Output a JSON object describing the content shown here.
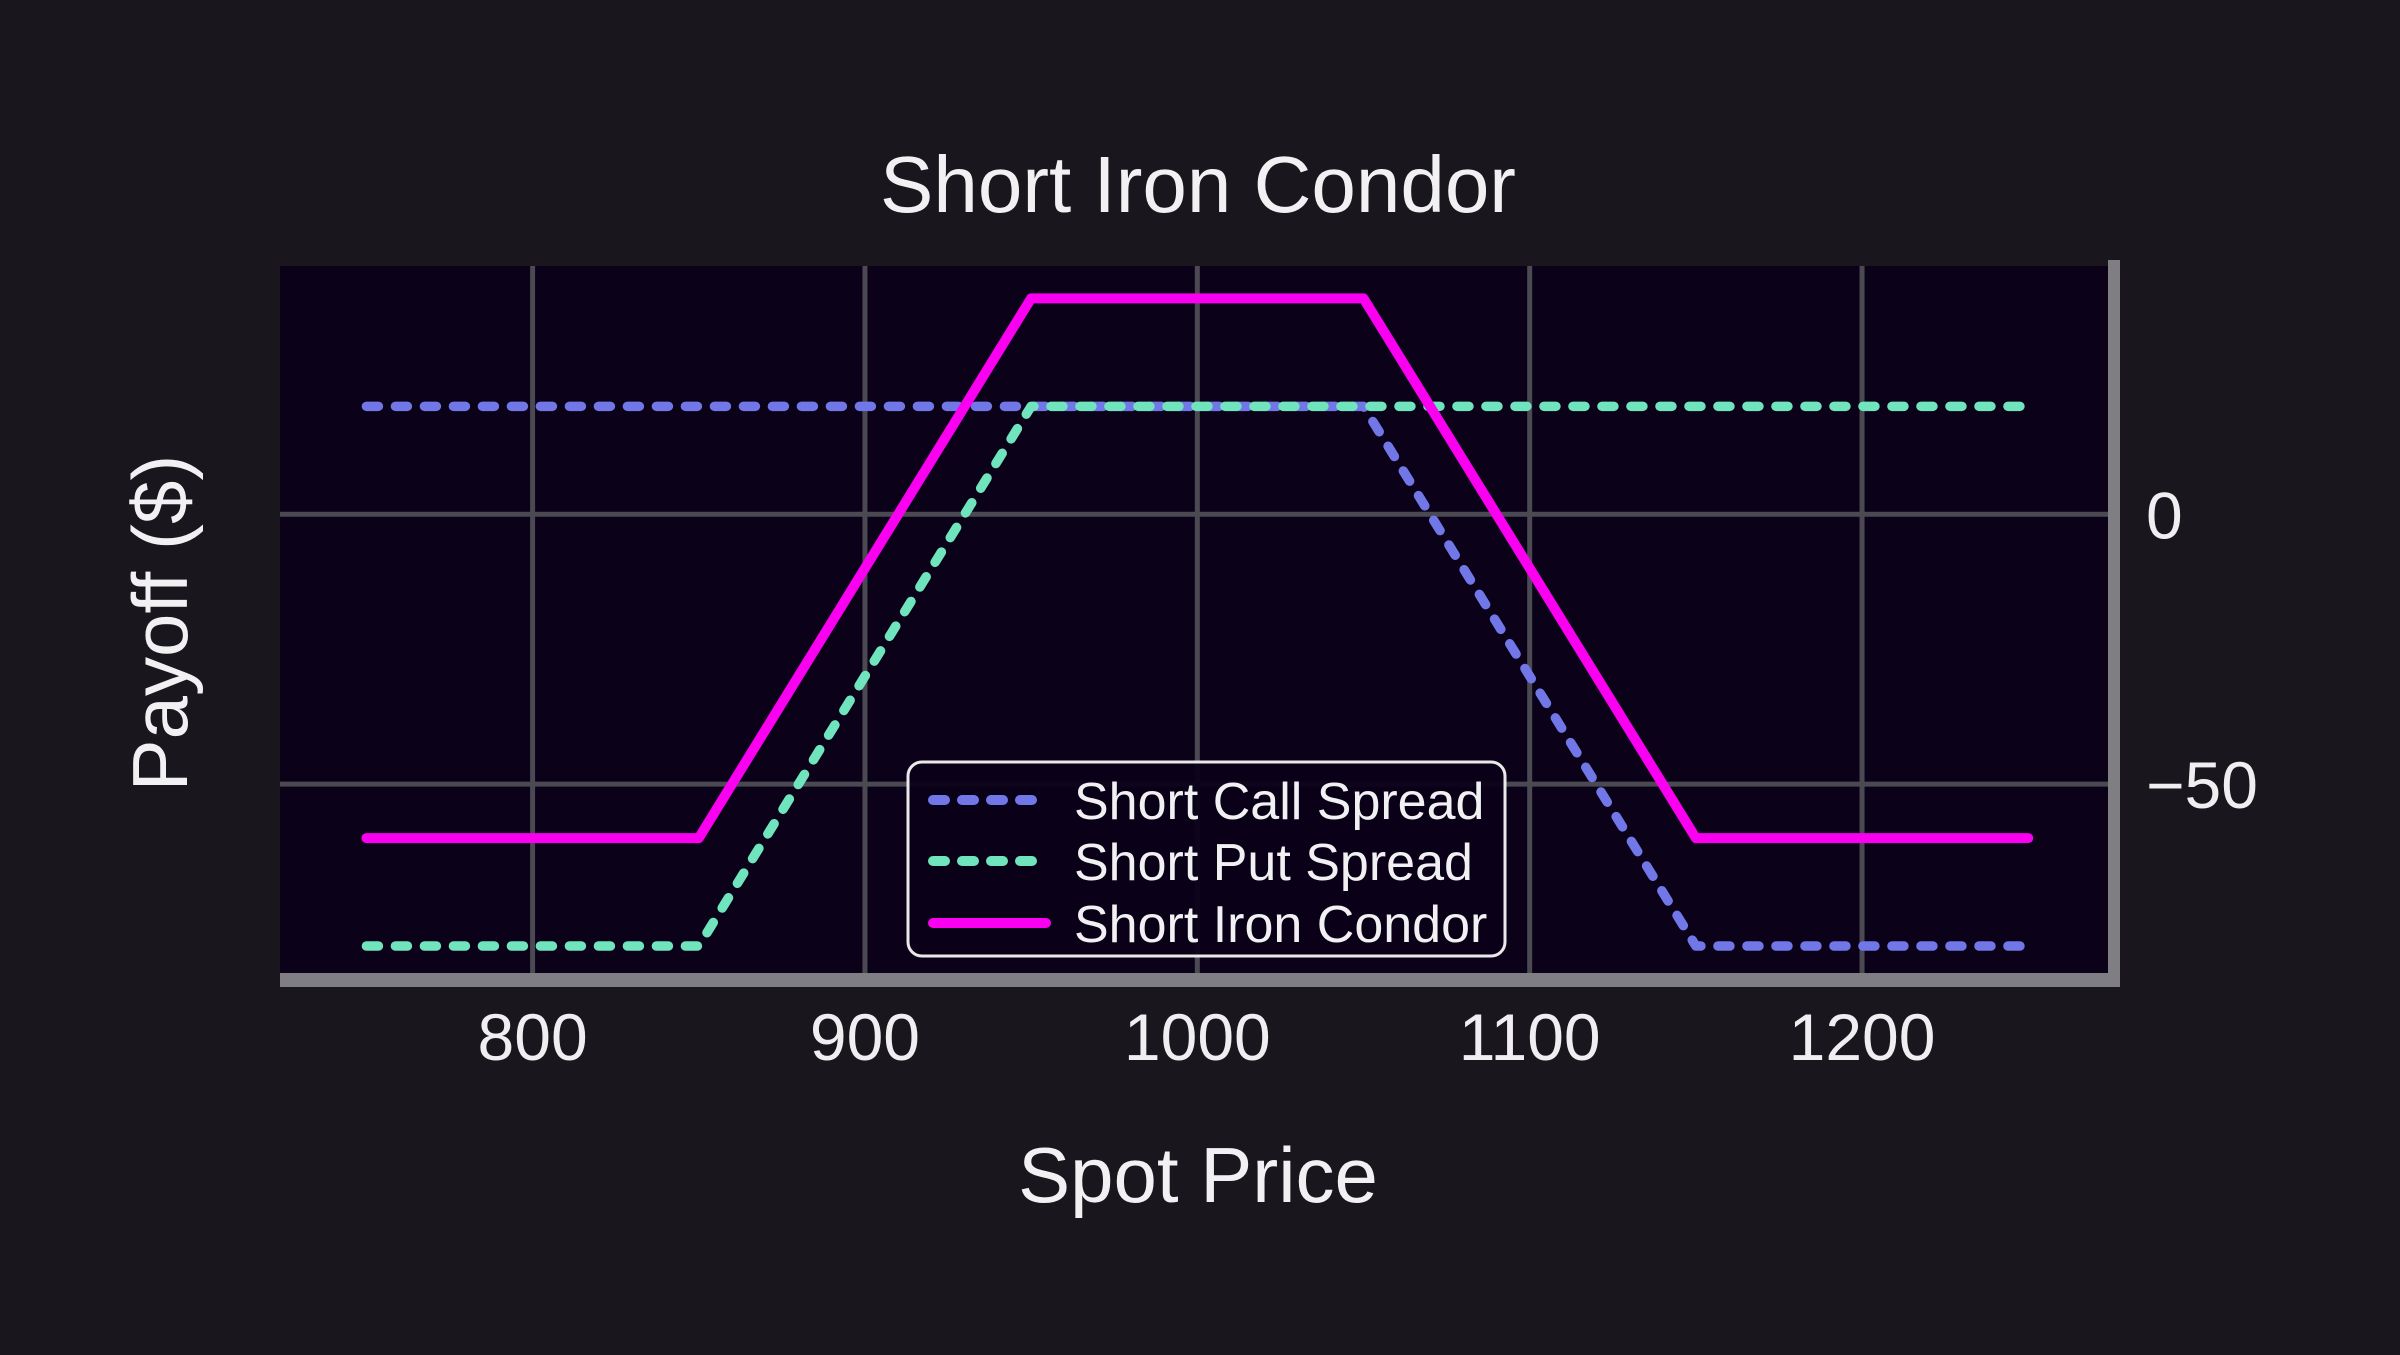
{
  "chart_data": {
    "type": "line",
    "title": "Short Iron Condor",
    "xlabel": "Spot Price",
    "ylabel": "Payoff ($)",
    "xlim": [
      724,
      1274
    ],
    "ylim": [
      -85,
      46
    ],
    "x_ticks": [
      800,
      900,
      1000,
      1100,
      1200
    ],
    "x_tick_labels": [
      "800",
      "900",
      "1000",
      "1100",
      "1200"
    ],
    "y_ticks": [
      0,
      -50
    ],
    "y_tick_labels": [
      "0",
      "−50"
    ],
    "y_axis_side": "right",
    "grid": true,
    "legend_position": "inside lower center-left",
    "series": [
      {
        "name": "Short Call Spread",
        "color": "#7277e8",
        "style": "dashed",
        "x": [
          750,
          1050,
          1150,
          1250
        ],
        "y": [
          20,
          20,
          -80,
          -80
        ]
      },
      {
        "name": "Short Put Spread",
        "color": "#70e4bd",
        "style": "dashed",
        "x": [
          750,
          850,
          950,
          1250
        ],
        "y": [
          -80,
          -80,
          20,
          20
        ]
      },
      {
        "name": "Short Iron Condor",
        "color": "#fa00f0",
        "style": "solid",
        "x": [
          750,
          850,
          950,
          1050,
          1150,
          1250
        ],
        "y": [
          -60,
          -60,
          40,
          40,
          -60,
          -60
        ]
      }
    ]
  },
  "colors": {
    "figure_background": "#19171d",
    "axes_background": "#0b0118",
    "gridline": "#4b4a52",
    "spine": "#7f7e83",
    "text": "#f1f0f2"
  }
}
